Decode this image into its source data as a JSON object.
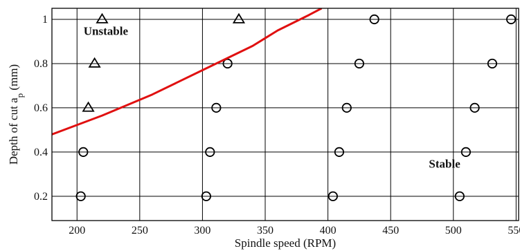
{
  "chart_data": {
    "type": "scatter",
    "xlabel": "Spindle speed (RPM)",
    "ylabel": {
      "main": "Depth of cut a",
      "sub": "p",
      "unit": " (mm)"
    },
    "xlim": [
      180,
      552
    ],
    "ylim": [
      0.09,
      1.05
    ],
    "x_ticks": [
      200,
      250,
      300,
      350,
      400,
      450,
      500,
      550
    ],
    "y_ticks": [
      0.2,
      0.4,
      0.6,
      0.8,
      1
    ],
    "grid": true,
    "annotations": [
      {
        "text": "Unstable",
        "x": 223,
        "y": 0.93
      },
      {
        "text": "Stable",
        "x": 493,
        "y": 0.33
      }
    ],
    "series": [
      {
        "marker": "triangle",
        "color": "#000000",
        "points": [
          {
            "x": 220,
            "y": 1.0
          },
          {
            "x": 329,
            "y": 1.0
          },
          {
            "x": 214,
            "y": 0.8
          },
          {
            "x": 209,
            "y": 0.6
          }
        ]
      },
      {
        "marker": "circle",
        "color": "#000000",
        "points": [
          {
            "x": 437,
            "y": 1.0
          },
          {
            "x": 546,
            "y": 1.0
          },
          {
            "x": 320,
            "y": 0.8
          },
          {
            "x": 425,
            "y": 0.8
          },
          {
            "x": 531,
            "y": 0.8
          },
          {
            "x": 311,
            "y": 0.6
          },
          {
            "x": 415,
            "y": 0.6
          },
          {
            "x": 517,
            "y": 0.6
          },
          {
            "x": 205,
            "y": 0.4
          },
          {
            "x": 306,
            "y": 0.4
          },
          {
            "x": 409,
            "y": 0.4
          },
          {
            "x": 510,
            "y": 0.4
          },
          {
            "x": 203,
            "y": 0.2
          },
          {
            "x": 303,
            "y": 0.2
          },
          {
            "x": 404,
            "y": 0.2
          },
          {
            "x": 505,
            "y": 0.2
          }
        ]
      },
      {
        "marker": "line",
        "color": "#e01010",
        "points": [
          {
            "x": 180,
            "y": 0.48
          },
          {
            "x": 220,
            "y": 0.565
          },
          {
            "x": 260,
            "y": 0.66
          },
          {
            "x": 300,
            "y": 0.77
          },
          {
            "x": 340,
            "y": 0.88
          },
          {
            "x": 360,
            "y": 0.95
          },
          {
            "x": 385,
            "y": 1.02
          },
          {
            "x": 395,
            "y": 1.05
          }
        ]
      }
    ]
  }
}
